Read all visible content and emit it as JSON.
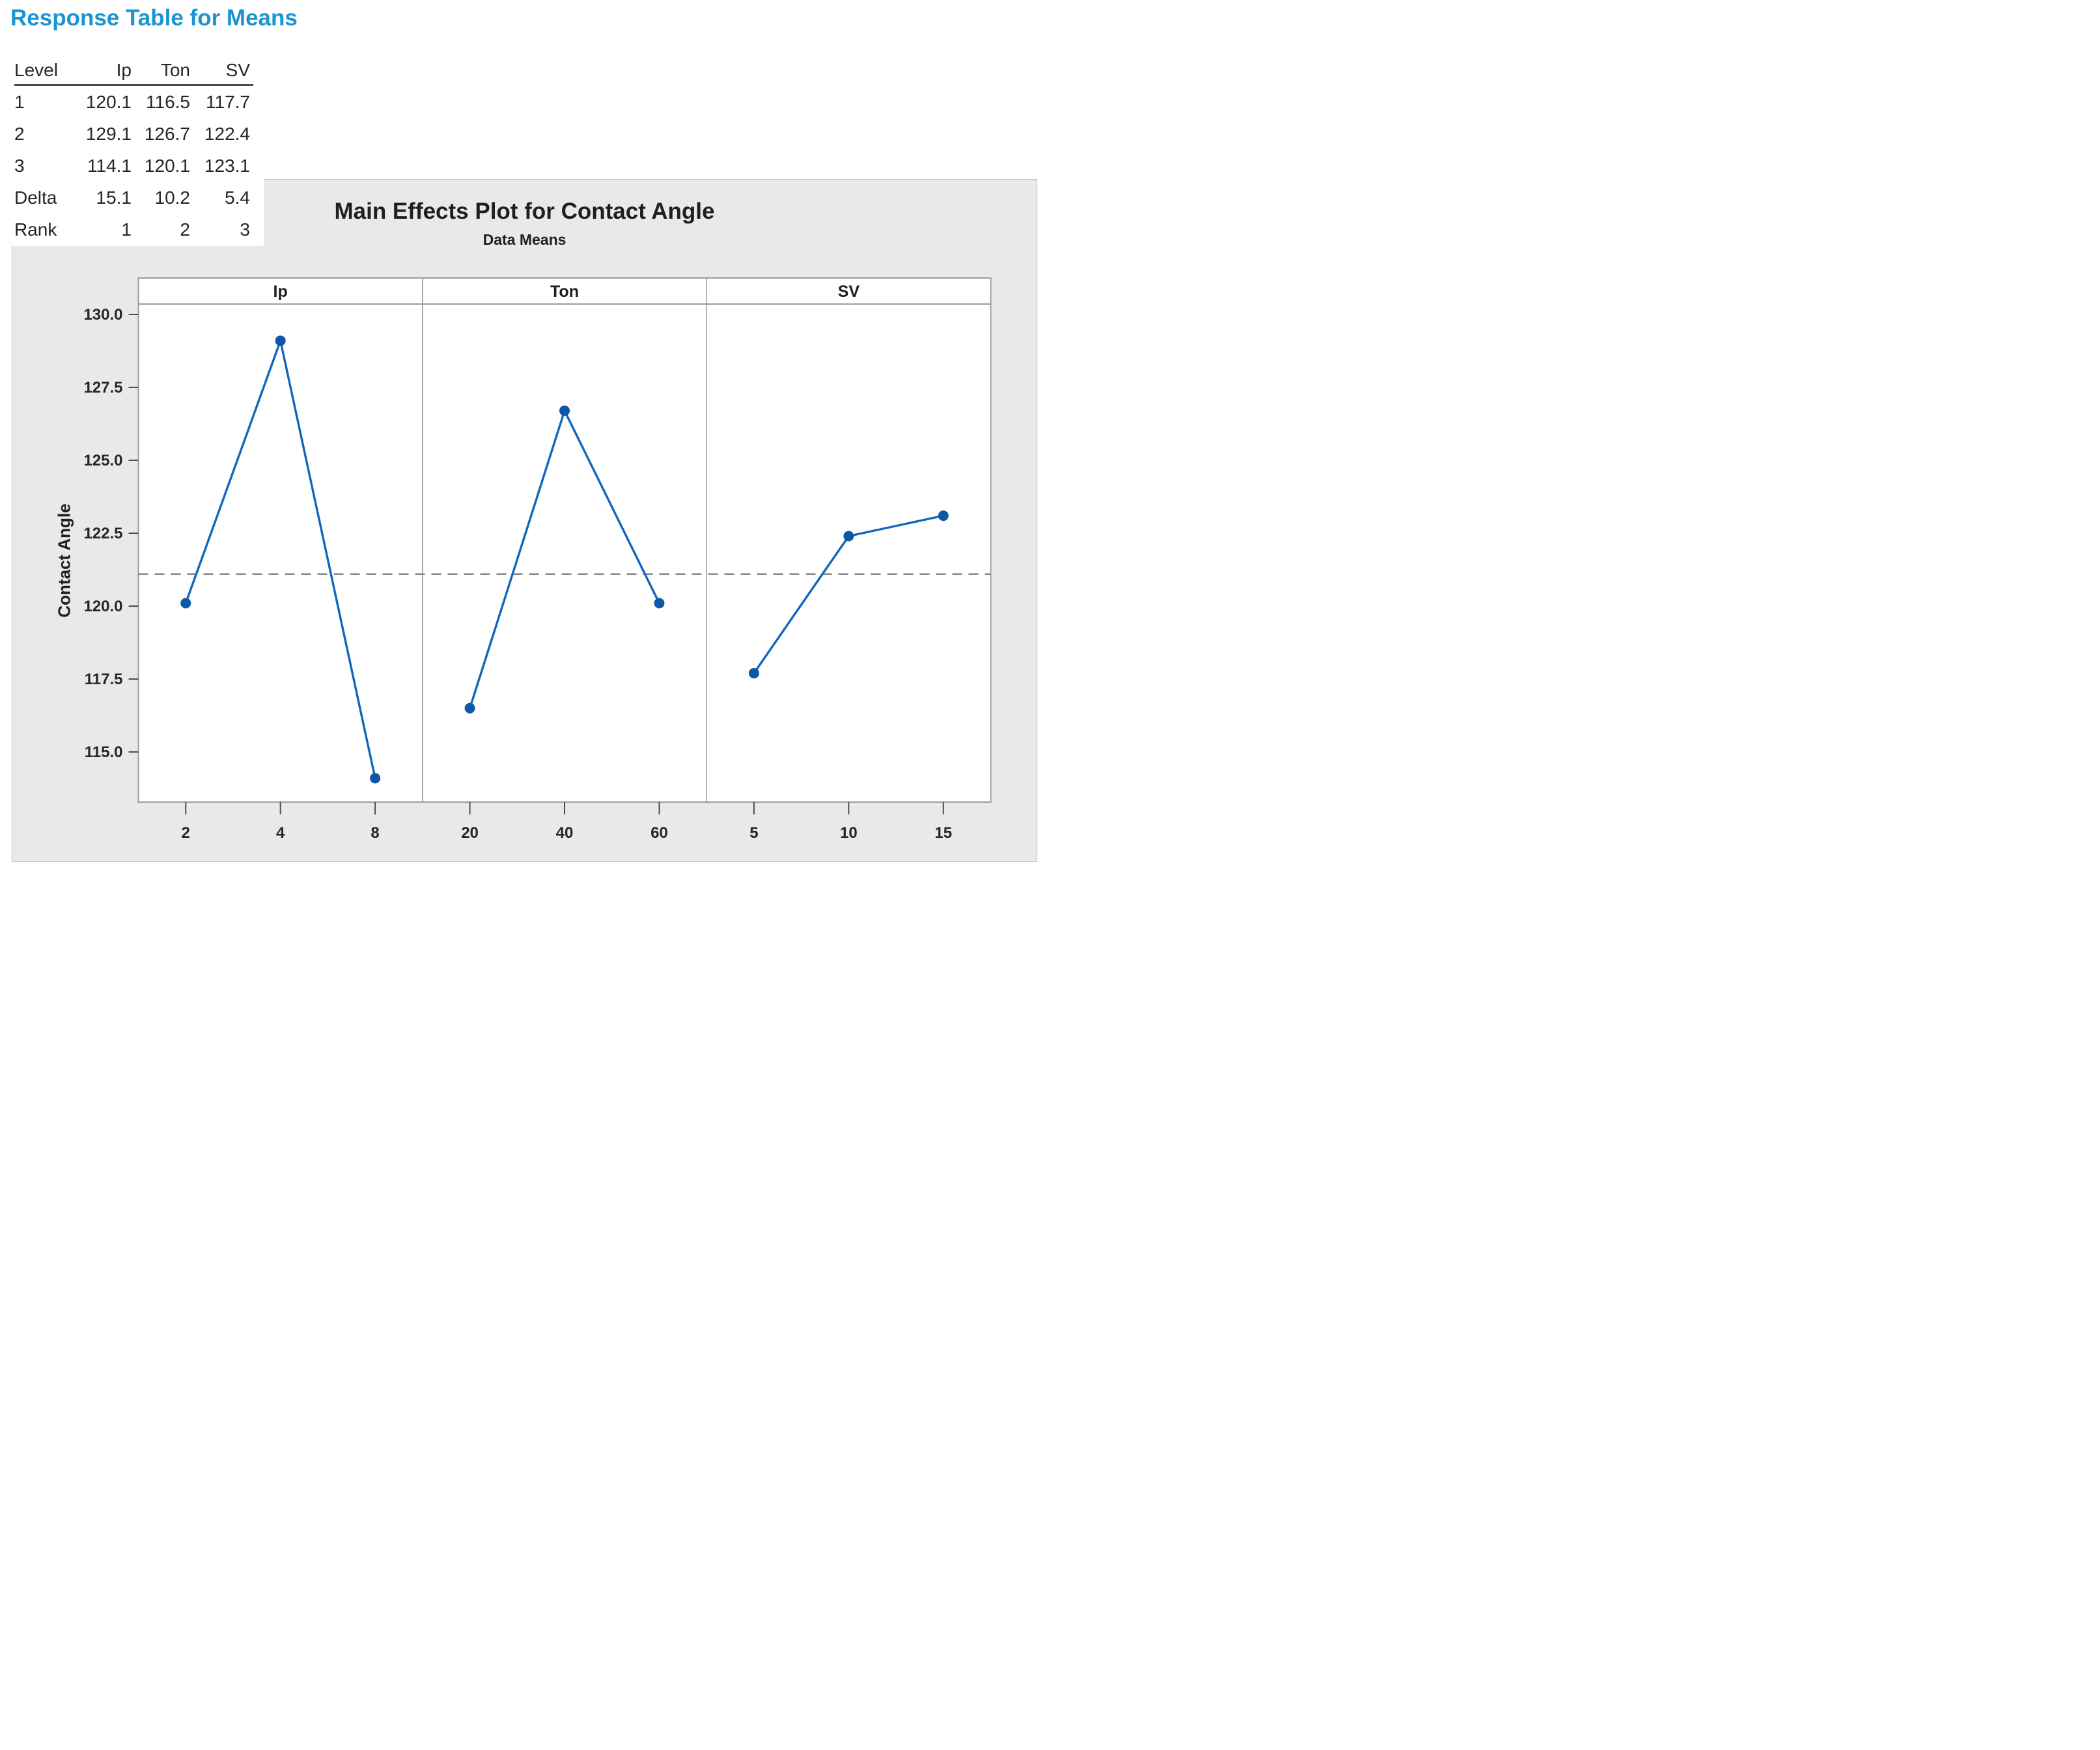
{
  "response_table": {
    "title": "Response Table for Means",
    "title_color": "#1a94d3",
    "columns": [
      "Level",
      "Ip",
      "Ton",
      "SV"
    ],
    "rows": [
      [
        "1",
        "120.1",
        "116.5",
        "117.7"
      ],
      [
        "2",
        "129.1",
        "126.7",
        "122.4"
      ],
      [
        "3",
        "114.1",
        "120.1",
        "123.1"
      ],
      [
        "Delta",
        "15.1",
        "10.2",
        "5.4"
      ],
      [
        "Rank",
        "1",
        "2",
        "3"
      ]
    ]
  },
  "chart_data": {
    "type": "line",
    "title": "Main Effects Plot for Contact Angle",
    "subtitle": "Data Means",
    "ylabel": "Contact Angle",
    "ylim": [
      113.3,
      130.5
    ],
    "yticks": [
      "130.0",
      "127.5",
      "125.0",
      "122.5",
      "120.0",
      "117.5",
      "115.0"
    ],
    "grand_mean": 121.1,
    "grand_mean_style": "dashed",
    "grid": "off",
    "legend": "none",
    "panels": [
      {
        "name": "Ip",
        "categories": [
          "2",
          "4",
          "8"
        ],
        "values": [
          120.1,
          129.1,
          114.1
        ]
      },
      {
        "name": "Ton",
        "categories": [
          "20",
          "40",
          "60"
        ],
        "values": [
          116.5,
          126.7,
          120.1
        ]
      },
      {
        "name": "SV",
        "categories": [
          "5",
          "10",
          "15"
        ],
        "values": [
          117.7,
          122.4,
          123.1
        ]
      }
    ],
    "colors": {
      "line": "#1266bd",
      "marker": "#0d57a6",
      "chart_bg": "#e9e9e9",
      "panel_bg": "#ffffff",
      "frame": "#9c9c9c",
      "tick": "#4d4d4d",
      "mean_line": "#8a8a8a"
    }
  }
}
